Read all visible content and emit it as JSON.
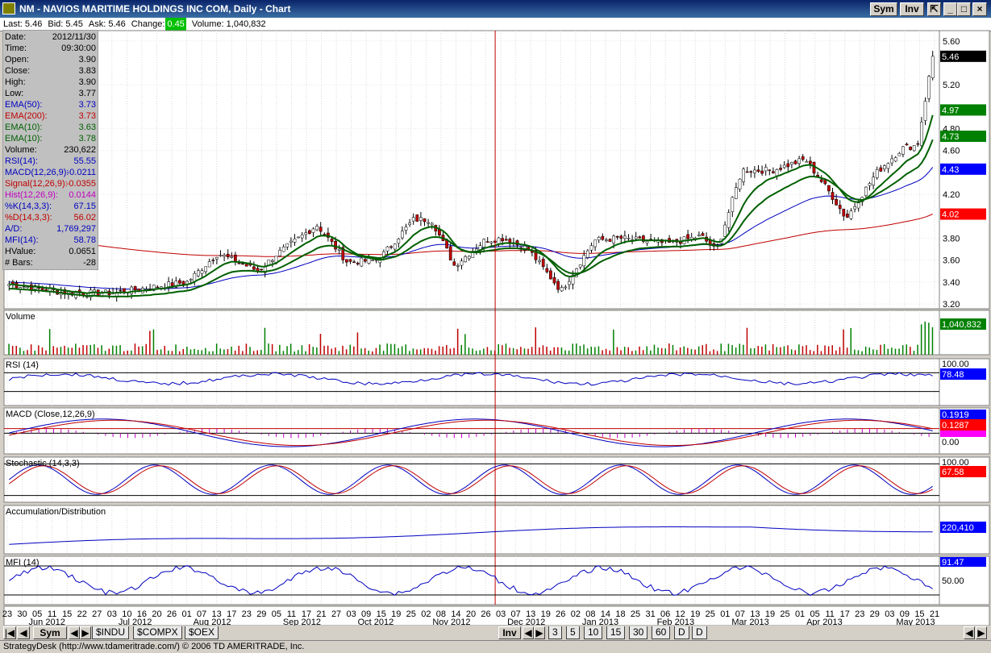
{
  "window": {
    "title": "NM - NAVIOS MARITIME HOLDINGS INC COM, Daily - Chart",
    "sym_button": "Sym",
    "inv_button": "Inv"
  },
  "quote": {
    "last": "Last: 5.46",
    "bid": "Bid: 5.45",
    "ask": "Ask: 5.46",
    "change_label": "Change:",
    "change_value": "0.45",
    "volume": "Volume: 1,040,832"
  },
  "data_box": [
    {
      "label": "Date:",
      "value": "2012/11/30",
      "color": "#000000"
    },
    {
      "label": "Time:",
      "value": "09:30:00",
      "color": "#000000"
    },
    {
      "label": "Open:",
      "value": "3.90",
      "color": "#000000"
    },
    {
      "label": "Close:",
      "value": "3.83",
      "color": "#000000"
    },
    {
      "label": "High:",
      "value": "3.90",
      "color": "#000000"
    },
    {
      "label": "Low:",
      "value": "3.77",
      "color": "#000000"
    },
    {
      "label": "EMA(50):",
      "value": "3.73",
      "color": "#0000c0"
    },
    {
      "label": "EMA(200):",
      "value": "3.73",
      "color": "#c00000"
    },
    {
      "label": "EMA(10):",
      "value": "3.63",
      "color": "#006000"
    },
    {
      "label": "EMA(10):",
      "value": "3.78",
      "color": "#006000"
    },
    {
      "label": "Volume:",
      "value": "230,622",
      "color": "#000000"
    },
    {
      "label": "RSI(14):",
      "value": "55.55",
      "color": "#0000c0"
    },
    {
      "label": "MACD(12,26,9):",
      "value": "-0.0211",
      "color": "#0000c0"
    },
    {
      "label": "Signal(12,26,9):",
      "value": "-0.0355",
      "color": "#c00000"
    },
    {
      "label": "Hist(12,26,9):",
      "value": "0.0144",
      "color": "#c000c0"
    },
    {
      "label": "%K(14,3,3):",
      "value": "67.15",
      "color": "#0000c0"
    },
    {
      "label": "%D(14,3,3):",
      "value": "56.02",
      "color": "#c00000"
    },
    {
      "label": "A/D:",
      "value": "1,769,297",
      "color": "#0000c0"
    },
    {
      "label": "MFI(14):",
      "value": "58.78",
      "color": "#0000c0"
    },
    {
      "label": "HValue:",
      "value": "0.0651",
      "color": "#000000"
    },
    {
      "label": "# Bars:",
      "value": "-28",
      "color": "#000000"
    }
  ],
  "price_axis": {
    "ticks": [
      "5.60",
      "5.20",
      "4.80",
      "4.60",
      "4.20",
      "3.80",
      "3.60",
      "3.40",
      "3.20"
    ],
    "tick_values": [
      5.6,
      5.2,
      4.8,
      4.6,
      4.2,
      3.8,
      3.6,
      3.4,
      3.2
    ],
    "markers": [
      {
        "value": "5.46",
        "color": "#000000"
      },
      {
        "value": "4.97",
        "color": "#008000"
      },
      {
        "value": "4.73",
        "color": "#008000"
      },
      {
        "value": "4.43",
        "color": "#0000ff"
      },
      {
        "value": "4.02",
        "color": "#ff0000"
      }
    ]
  },
  "panels": {
    "volume": {
      "label": "Volume",
      "marker": "1,040,832"
    },
    "rsi": {
      "label": "RSI (14)",
      "top": "100.00",
      "marker": "78.48"
    },
    "macd": {
      "label": "MACD (Close,12,26,9)",
      "top": "0.1919",
      "marker": "0.1287",
      "bottom": "0.00"
    },
    "stoch": {
      "label": "Stochastic (14,3,3)",
      "top": "100.00",
      "marker": "67.58"
    },
    "ad": {
      "label": "Accumulation/Distribution",
      "marker": "220,410"
    },
    "mfi": {
      "label": "MFI (14)",
      "top": "91.47",
      "mid": "50.00"
    }
  },
  "x_axis": {
    "days": [
      "23",
      "30",
      "05",
      "11",
      "15",
      "22",
      "27",
      "03",
      "10",
      "16",
      "20",
      "26",
      "01",
      "07",
      "13",
      "17",
      "23",
      "29",
      "05",
      "11",
      "17",
      "21",
      "27",
      "03",
      "09",
      "15",
      "19",
      "25",
      "02",
      "08",
      "14",
      "20",
      "26",
      "03",
      "07",
      "13",
      "19",
      "26",
      "02",
      "08",
      "14",
      "18",
      "25",
      "31",
      "06",
      "12",
      "19",
      "25",
      "01",
      "07",
      "13",
      "19",
      "25",
      "01",
      "05",
      "11",
      "17",
      "23",
      "29",
      "03",
      "09",
      "15",
      "21"
    ],
    "months": [
      "Jun 2012",
      "Jul 2012",
      "Aug 2012",
      "Sep 2012",
      "Oct 2012",
      "Nov 2012",
      "Dec 2012",
      "Jan 2013",
      "Feb 2013",
      "Mar 2013",
      "Apr 2013",
      "May 2013"
    ]
  },
  "bottom_bar": {
    "sym": "Sym",
    "tabs": [
      "$INDU",
      "$COMPX",
      "$OEX"
    ],
    "inv": "Inv",
    "periods": [
      "3",
      "5",
      "10",
      "15",
      "30",
      "60",
      "D",
      "D"
    ]
  },
  "status": "StrategyDesk (http://www.tdameritrade.com/) © 2006 TD AMERITRADE, Inc.",
  "colors": {
    "up_candle": "#ffffff",
    "down_candle": "#c00000",
    "ema_fast": "#006000",
    "ema50": "#0000c0",
    "ema200": "#c00000",
    "cursor": "#c00000"
  },
  "chart_data": {
    "type": "candlestick",
    "title": "NM - NAVIOS MARITIME HOLDINGS INC COM, Daily - Chart",
    "x_range": [
      "2012-05-23",
      "2013-05-21"
    ],
    "y_range": [
      3.2,
      5.65
    ],
    "close_path": [
      {
        "date": "2012-05-23",
        "close": 3.38
      },
      {
        "date": "2012-06-15",
        "close": 3.3
      },
      {
        "date": "2012-07-03",
        "close": 3.3
      },
      {
        "date": "2012-07-20",
        "close": 3.36
      },
      {
        "date": "2012-08-01",
        "close": 3.4
      },
      {
        "date": "2012-08-13",
        "close": 3.66
      },
      {
        "date": "2012-08-29",
        "close": 3.5
      },
      {
        "date": "2012-09-05",
        "close": 3.65
      },
      {
        "date": "2012-09-21",
        "close": 3.92
      },
      {
        "date": "2012-10-03",
        "close": 3.58
      },
      {
        "date": "2012-10-15",
        "close": 3.6
      },
      {
        "date": "2012-10-29",
        "close": 3.97
      },
      {
        "date": "2012-11-05",
        "close": 3.97
      },
      {
        "date": "2012-11-14",
        "close": 3.55
      },
      {
        "date": "2012-11-26",
        "close": 3.78
      },
      {
        "date": "2012-12-03",
        "close": 3.8
      },
      {
        "date": "2012-12-13",
        "close": 3.7
      },
      {
        "date": "2012-12-26",
        "close": 3.32
      },
      {
        "date": "2013-01-08",
        "close": 3.78
      },
      {
        "date": "2013-01-18",
        "close": 3.8
      },
      {
        "date": "2013-02-06",
        "close": 3.75
      },
      {
        "date": "2013-02-19",
        "close": 3.82
      },
      {
        "date": "2013-02-25",
        "close": 3.68
      },
      {
        "date": "2013-03-07",
        "close": 4.42
      },
      {
        "date": "2013-03-19",
        "close": 4.42
      },
      {
        "date": "2013-04-01",
        "close": 4.52
      },
      {
        "date": "2013-04-11",
        "close": 4.2
      },
      {
        "date": "2013-04-17",
        "close": 3.98
      },
      {
        "date": "2013-04-29",
        "close": 4.4
      },
      {
        "date": "2013-05-09",
        "close": 4.62
      },
      {
        "date": "2013-05-15",
        "close": 4.65
      },
      {
        "date": "2013-05-21",
        "close": 5.46
      }
    ],
    "last": 5.46,
    "ema_markers": {
      "ema10_a": 4.97,
      "ema10_b": 4.73,
      "ema50": 4.43,
      "ema200": 4.02
    }
  }
}
